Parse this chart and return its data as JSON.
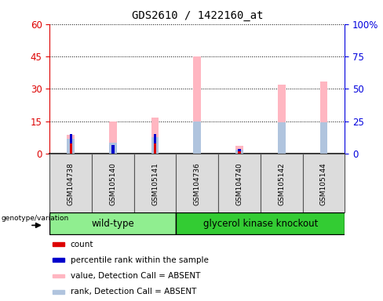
{
  "title": "GDS2610 / 1422160_at",
  "samples": [
    "GSM104738",
    "GSM105140",
    "GSM105141",
    "GSM104736",
    "GSM104740",
    "GSM105142",
    "GSM105144"
  ],
  "group_wt_indices": [
    0,
    1,
    2
  ],
  "group_ko_indices": [
    3,
    4,
    5,
    6
  ],
  "group_wt_label": "wild-type",
  "group_ko_label": "glycerol kinase knockout",
  "group_wt_color": "#90EE90",
  "group_ko_color": "#33CC33",
  "bar_color_absent_value": "#FFB6C1",
  "bar_color_absent_rank": "#B0C4DE",
  "bar_color_count": "#DD0000",
  "bar_color_pct_rank": "#0000CC",
  "absent_value": [
    8.5,
    15.0,
    16.5,
    45.0,
    3.5,
    32.0,
    33.5
  ],
  "absent_rank": [
    7.0,
    5.0,
    7.5,
    15.0,
    1.8,
    14.5,
    14.5
  ],
  "count": [
    4.5,
    0.0,
    4.5,
    0.0,
    1.0,
    0.0,
    0.0
  ],
  "pct_rank": [
    4.5,
    4.0,
    4.5,
    0.0,
    1.2,
    0.0,
    0.0
  ],
  "ylim_left": [
    0,
    60
  ],
  "ylim_right": [
    0,
    100
  ],
  "yticks_left": [
    0,
    15,
    30,
    45,
    60
  ],
  "yticks_right": [
    0,
    25,
    50,
    75,
    100
  ],
  "ytick_labels_right": [
    "0",
    "25",
    "50",
    "75",
    "100%"
  ],
  "left_tick_color": "#DD0000",
  "right_tick_color": "#0000DD",
  "legend_items": [
    {
      "label": "count",
      "color": "#DD0000"
    },
    {
      "label": "percentile rank within the sample",
      "color": "#0000CC"
    },
    {
      "label": "value, Detection Call = ABSENT",
      "color": "#FFB6C1"
    },
    {
      "label": "rank, Detection Call = ABSENT",
      "color": "#B0C4DE"
    }
  ]
}
